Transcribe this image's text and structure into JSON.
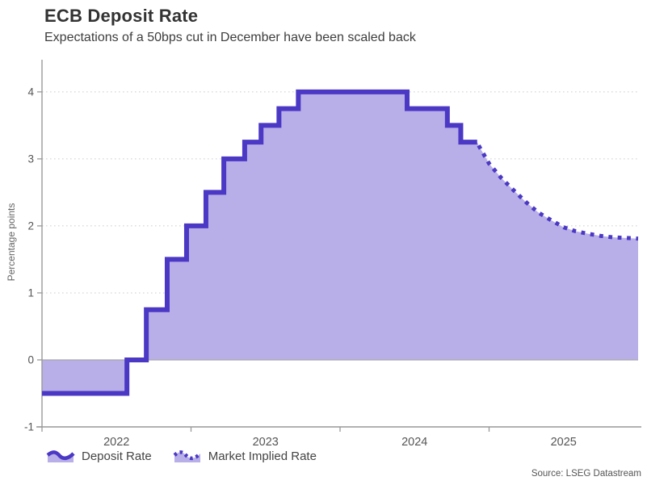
{
  "title": "ECB Deposit Rate",
  "subtitle": "Expectations of a 50bps cut in December have been scaled back",
  "source": "Source: LSEG Datastream",
  "ylabel": "Percentage points",
  "legend": [
    {
      "label": "Deposit Rate",
      "style": "solid"
    },
    {
      "label": "Market Implied Rate",
      "style": "dotted"
    }
  ],
  "colors": {
    "line": "#4b38c4",
    "fill": "#b8afe8",
    "axis": "#999999",
    "grid": "#cccccc",
    "zero_line": "#a6a6a6",
    "tick_text": "#555555"
  },
  "chart_data": {
    "type": "line",
    "title": "ECB Deposit Rate",
    "subtitle": "Expectations of a 50bps cut in December have been scaled back",
    "xlabel": "",
    "ylabel": "Percentage points",
    "x_domain": [
      2022,
      2026
    ],
    "ylim": [
      -1,
      4.48
    ],
    "y_ticks": [
      -1,
      0,
      1,
      2,
      3,
      4
    ],
    "x_ticks": [
      2022,
      2023,
      2024,
      2025
    ],
    "x_tick_label_offset": 0.5,
    "grid": "horizontal-dotted",
    "legend_position": "bottom",
    "series": [
      {
        "name": "Deposit Rate",
        "style": "step-solid",
        "points": [
          [
            2022.0,
            -0.5
          ],
          [
            2022.57,
            0.0
          ],
          [
            2022.7,
            0.75
          ],
          [
            2022.84,
            1.5
          ],
          [
            2022.97,
            2.0
          ],
          [
            2023.1,
            2.5
          ],
          [
            2023.22,
            3.0
          ],
          [
            2023.36,
            3.25
          ],
          [
            2023.47,
            3.5
          ],
          [
            2023.59,
            3.75
          ],
          [
            2023.72,
            4.0
          ],
          [
            2024.45,
            3.75
          ],
          [
            2024.72,
            3.5
          ],
          [
            2024.81,
            3.25
          ],
          [
            2024.92,
            3.25
          ]
        ]
      },
      {
        "name": "Market Implied Rate",
        "style": "dotted",
        "points": [
          [
            2024.93,
            3.2
          ],
          [
            2025.0,
            2.93
          ],
          [
            2025.08,
            2.72
          ],
          [
            2025.17,
            2.52
          ],
          [
            2025.25,
            2.35
          ],
          [
            2025.33,
            2.2
          ],
          [
            2025.42,
            2.08
          ],
          [
            2025.5,
            1.98
          ],
          [
            2025.58,
            1.92
          ],
          [
            2025.67,
            1.88
          ],
          [
            2025.75,
            1.85
          ],
          [
            2025.83,
            1.83
          ],
          [
            2025.92,
            1.82
          ],
          [
            2026.0,
            1.81
          ]
        ]
      }
    ]
  }
}
